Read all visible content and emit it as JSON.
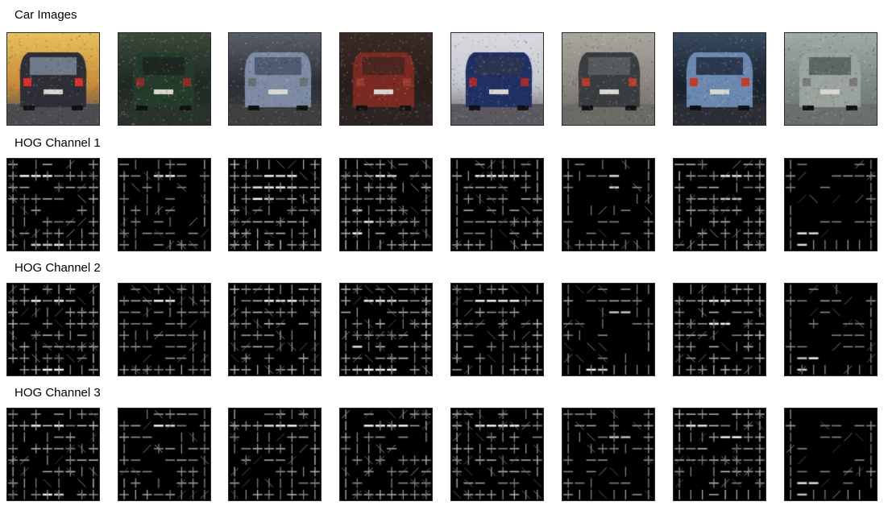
{
  "rows": [
    {
      "title": "Car Images",
      "kind": "car"
    },
    {
      "title": "HOG Channel 1",
      "kind": "hog"
    },
    {
      "title": "HOG Channel 2",
      "kind": "hog"
    },
    {
      "title": "HOG Channel 3",
      "kind": "hog"
    }
  ],
  "cars": [
    {
      "bg": "#c98c3a",
      "body": "#2e2f36",
      "window": "#6f7b8a",
      "light": "#d8322a",
      "ground": "#4a4c4f",
      "sky": "#e7c15a"
    },
    {
      "bg": "#1f2a22",
      "body": "#243a2a",
      "window": "#1d2620",
      "light": "#8b2a2a",
      "ground": "#2a332b",
      "sky": "#3b4a3c"
    },
    {
      "bg": "#2b2f38",
      "body": "#7d8aa3",
      "window": "#4f5b70",
      "light": "#6b6f78",
      "ground": "#3f3f3f",
      "sky": "#5a5f6a"
    },
    {
      "bg": "#2a1e1c",
      "body": "#7a2a22",
      "window": "#4c2620",
      "light": "#9a3a2a",
      "ground": "#2b2422",
      "sky": "#3a2b27"
    },
    {
      "bg": "#c7c9d1",
      "body": "#213063",
      "window": "#2a3550",
      "light": "#a12a2a",
      "ground": "#5a5a5e",
      "sky": "#d9d9df"
    },
    {
      "bg": "#8a8680",
      "body": "#3a3d40",
      "window": "#575a5d",
      "light": "#b33e2f",
      "ground": "#6c6a64",
      "sky": "#a9a6a0"
    },
    {
      "bg": "#1a2330",
      "body": "#6b88b0",
      "window": "#2b3850",
      "light": "#c23a2a",
      "ground": "#2b2f35",
      "sky": "#3a4a60"
    },
    {
      "bg": "#7e8882",
      "body": "#9aa39d",
      "window": "#5d6660",
      "light": "#7a7a7a",
      "ground": "#6a716c",
      "sky": "#a2aaa5"
    }
  ],
  "hog": [
    [
      {
        "seed": 11,
        "density": 0.55,
        "bright": [
          [
            1,
            1
          ],
          [
            1,
            2
          ],
          [
            1,
            3
          ],
          [
            7,
            2
          ],
          [
            7,
            3
          ],
          [
            7,
            4
          ]
        ]
      },
      {
        "seed": 12,
        "density": 0.42,
        "bright": [
          [
            1,
            3
          ],
          [
            1,
            4
          ]
        ]
      },
      {
        "seed": 13,
        "density": 0.7,
        "bright": [
          [
            1,
            3
          ],
          [
            1,
            4
          ],
          [
            1,
            5
          ],
          [
            2,
            2
          ],
          [
            2,
            3
          ],
          [
            2,
            4
          ],
          [
            2,
            5
          ],
          [
            3,
            2
          ],
          [
            3,
            3
          ]
        ]
      },
      {
        "seed": 14,
        "density": 0.6,
        "bright": [
          [
            1,
            3
          ],
          [
            1,
            4
          ],
          [
            4,
            1
          ],
          [
            5,
            2
          ],
          [
            6,
            1
          ]
        ]
      },
      {
        "seed": 15,
        "density": 0.55,
        "bright": [
          [
            1,
            2
          ],
          [
            1,
            3
          ],
          [
            1,
            4
          ],
          [
            1,
            5
          ]
        ]
      },
      {
        "seed": 16,
        "density": 0.35,
        "bright": [
          [
            1,
            4
          ],
          [
            2,
            4
          ]
        ]
      },
      {
        "seed": 17,
        "density": 0.6,
        "bright": [
          [
            1,
            4
          ],
          [
            1,
            5
          ],
          [
            3,
            4
          ],
          [
            3,
            5
          ]
        ]
      },
      {
        "seed": 18,
        "density": 0.3,
        "bright": [
          [
            6,
            1
          ],
          [
            6,
            2
          ],
          [
            7,
            1
          ]
        ]
      }
    ],
    [
      {
        "seed": 21,
        "density": 0.6,
        "bright": [
          [
            7,
            3
          ],
          [
            7,
            4
          ],
          [
            1,
            2
          ],
          [
            1,
            4
          ]
        ]
      },
      {
        "seed": 22,
        "density": 0.45,
        "bright": [
          [
            1,
            3
          ],
          [
            1,
            4
          ]
        ]
      },
      {
        "seed": 23,
        "density": 0.65,
        "bright": [
          [
            1,
            3
          ],
          [
            1,
            4
          ],
          [
            1,
            5
          ]
        ]
      },
      {
        "seed": 24,
        "density": 0.65,
        "bright": [
          [
            1,
            2
          ],
          [
            1,
            3
          ],
          [
            1,
            4
          ],
          [
            5,
            1
          ],
          [
            7,
            1
          ],
          [
            7,
            2
          ],
          [
            7,
            3
          ],
          [
            7,
            4
          ]
        ]
      },
      {
        "seed": 25,
        "density": 0.55,
        "bright": [
          [
            1,
            2
          ],
          [
            1,
            3
          ],
          [
            1,
            4
          ],
          [
            1,
            5
          ]
        ]
      },
      {
        "seed": 26,
        "density": 0.35,
        "bright": [
          [
            2,
            4
          ],
          [
            2,
            5
          ],
          [
            7,
            2
          ],
          [
            7,
            3
          ]
        ]
      },
      {
        "seed": 27,
        "density": 0.6,
        "bright": [
          [
            1,
            3
          ],
          [
            1,
            4
          ],
          [
            3,
            3
          ],
          [
            3,
            4
          ]
        ]
      },
      {
        "seed": 28,
        "density": 0.32,
        "bright": [
          [
            6,
            1
          ],
          [
            6,
            2
          ],
          [
            7,
            1
          ]
        ]
      }
    ],
    [
      {
        "seed": 31,
        "density": 0.6,
        "bright": [
          [
            1,
            2
          ],
          [
            1,
            4
          ],
          [
            7,
            3
          ],
          [
            7,
            4
          ]
        ]
      },
      {
        "seed": 32,
        "density": 0.48,
        "bright": [
          [
            1,
            3
          ],
          [
            1,
            4
          ]
        ]
      },
      {
        "seed": 33,
        "density": 0.55,
        "bright": [
          [
            1,
            3
          ],
          [
            1,
            4
          ],
          [
            1,
            5
          ]
        ]
      },
      {
        "seed": 34,
        "density": 0.5,
        "bright": [
          [
            1,
            2
          ],
          [
            1,
            3
          ],
          [
            1,
            4
          ],
          [
            1,
            5
          ]
        ]
      },
      {
        "seed": 35,
        "density": 0.55,
        "bright": [
          [
            1,
            2
          ],
          [
            1,
            3
          ],
          [
            1,
            4
          ],
          [
            1,
            5
          ]
        ]
      },
      {
        "seed": 36,
        "density": 0.38,
        "bright": [
          [
            2,
            4
          ],
          [
            2,
            5
          ]
        ]
      },
      {
        "seed": 37,
        "density": 0.6,
        "bright": [
          [
            1,
            1
          ],
          [
            1,
            2
          ],
          [
            2,
            4
          ],
          [
            2,
            5
          ]
        ]
      },
      {
        "seed": 38,
        "density": 0.32,
        "bright": [
          [
            6,
            1
          ],
          [
            6,
            2
          ],
          [
            7,
            1
          ]
        ]
      }
    ]
  ]
}
